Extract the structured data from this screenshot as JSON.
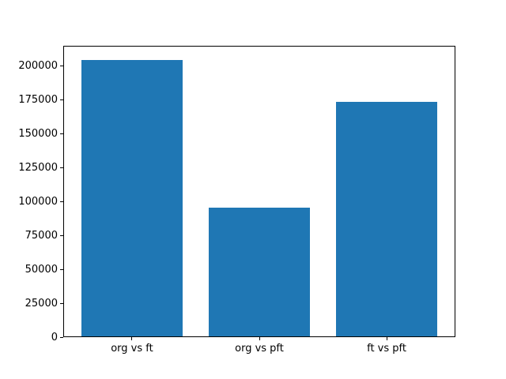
{
  "chart_data": {
    "type": "bar",
    "categories": [
      "org vs ft",
      "org vs pft",
      "ft vs pft"
    ],
    "values": [
      204600,
      95500,
      173800
    ],
    "title": "",
    "xlabel": "",
    "ylabel": "",
    "ylim": [
      0,
      214900
    ],
    "xlim": [
      -0.54,
      2.54
    ],
    "yticks": [
      0,
      25000,
      50000,
      75000,
      100000,
      125000,
      150000,
      175000,
      200000
    ],
    "bar_width_units": 0.8,
    "bar_color": "#1f77b4",
    "axes_edge_color": "#000000",
    "background_color": "#ffffff",
    "grid": false,
    "legend": null
  }
}
